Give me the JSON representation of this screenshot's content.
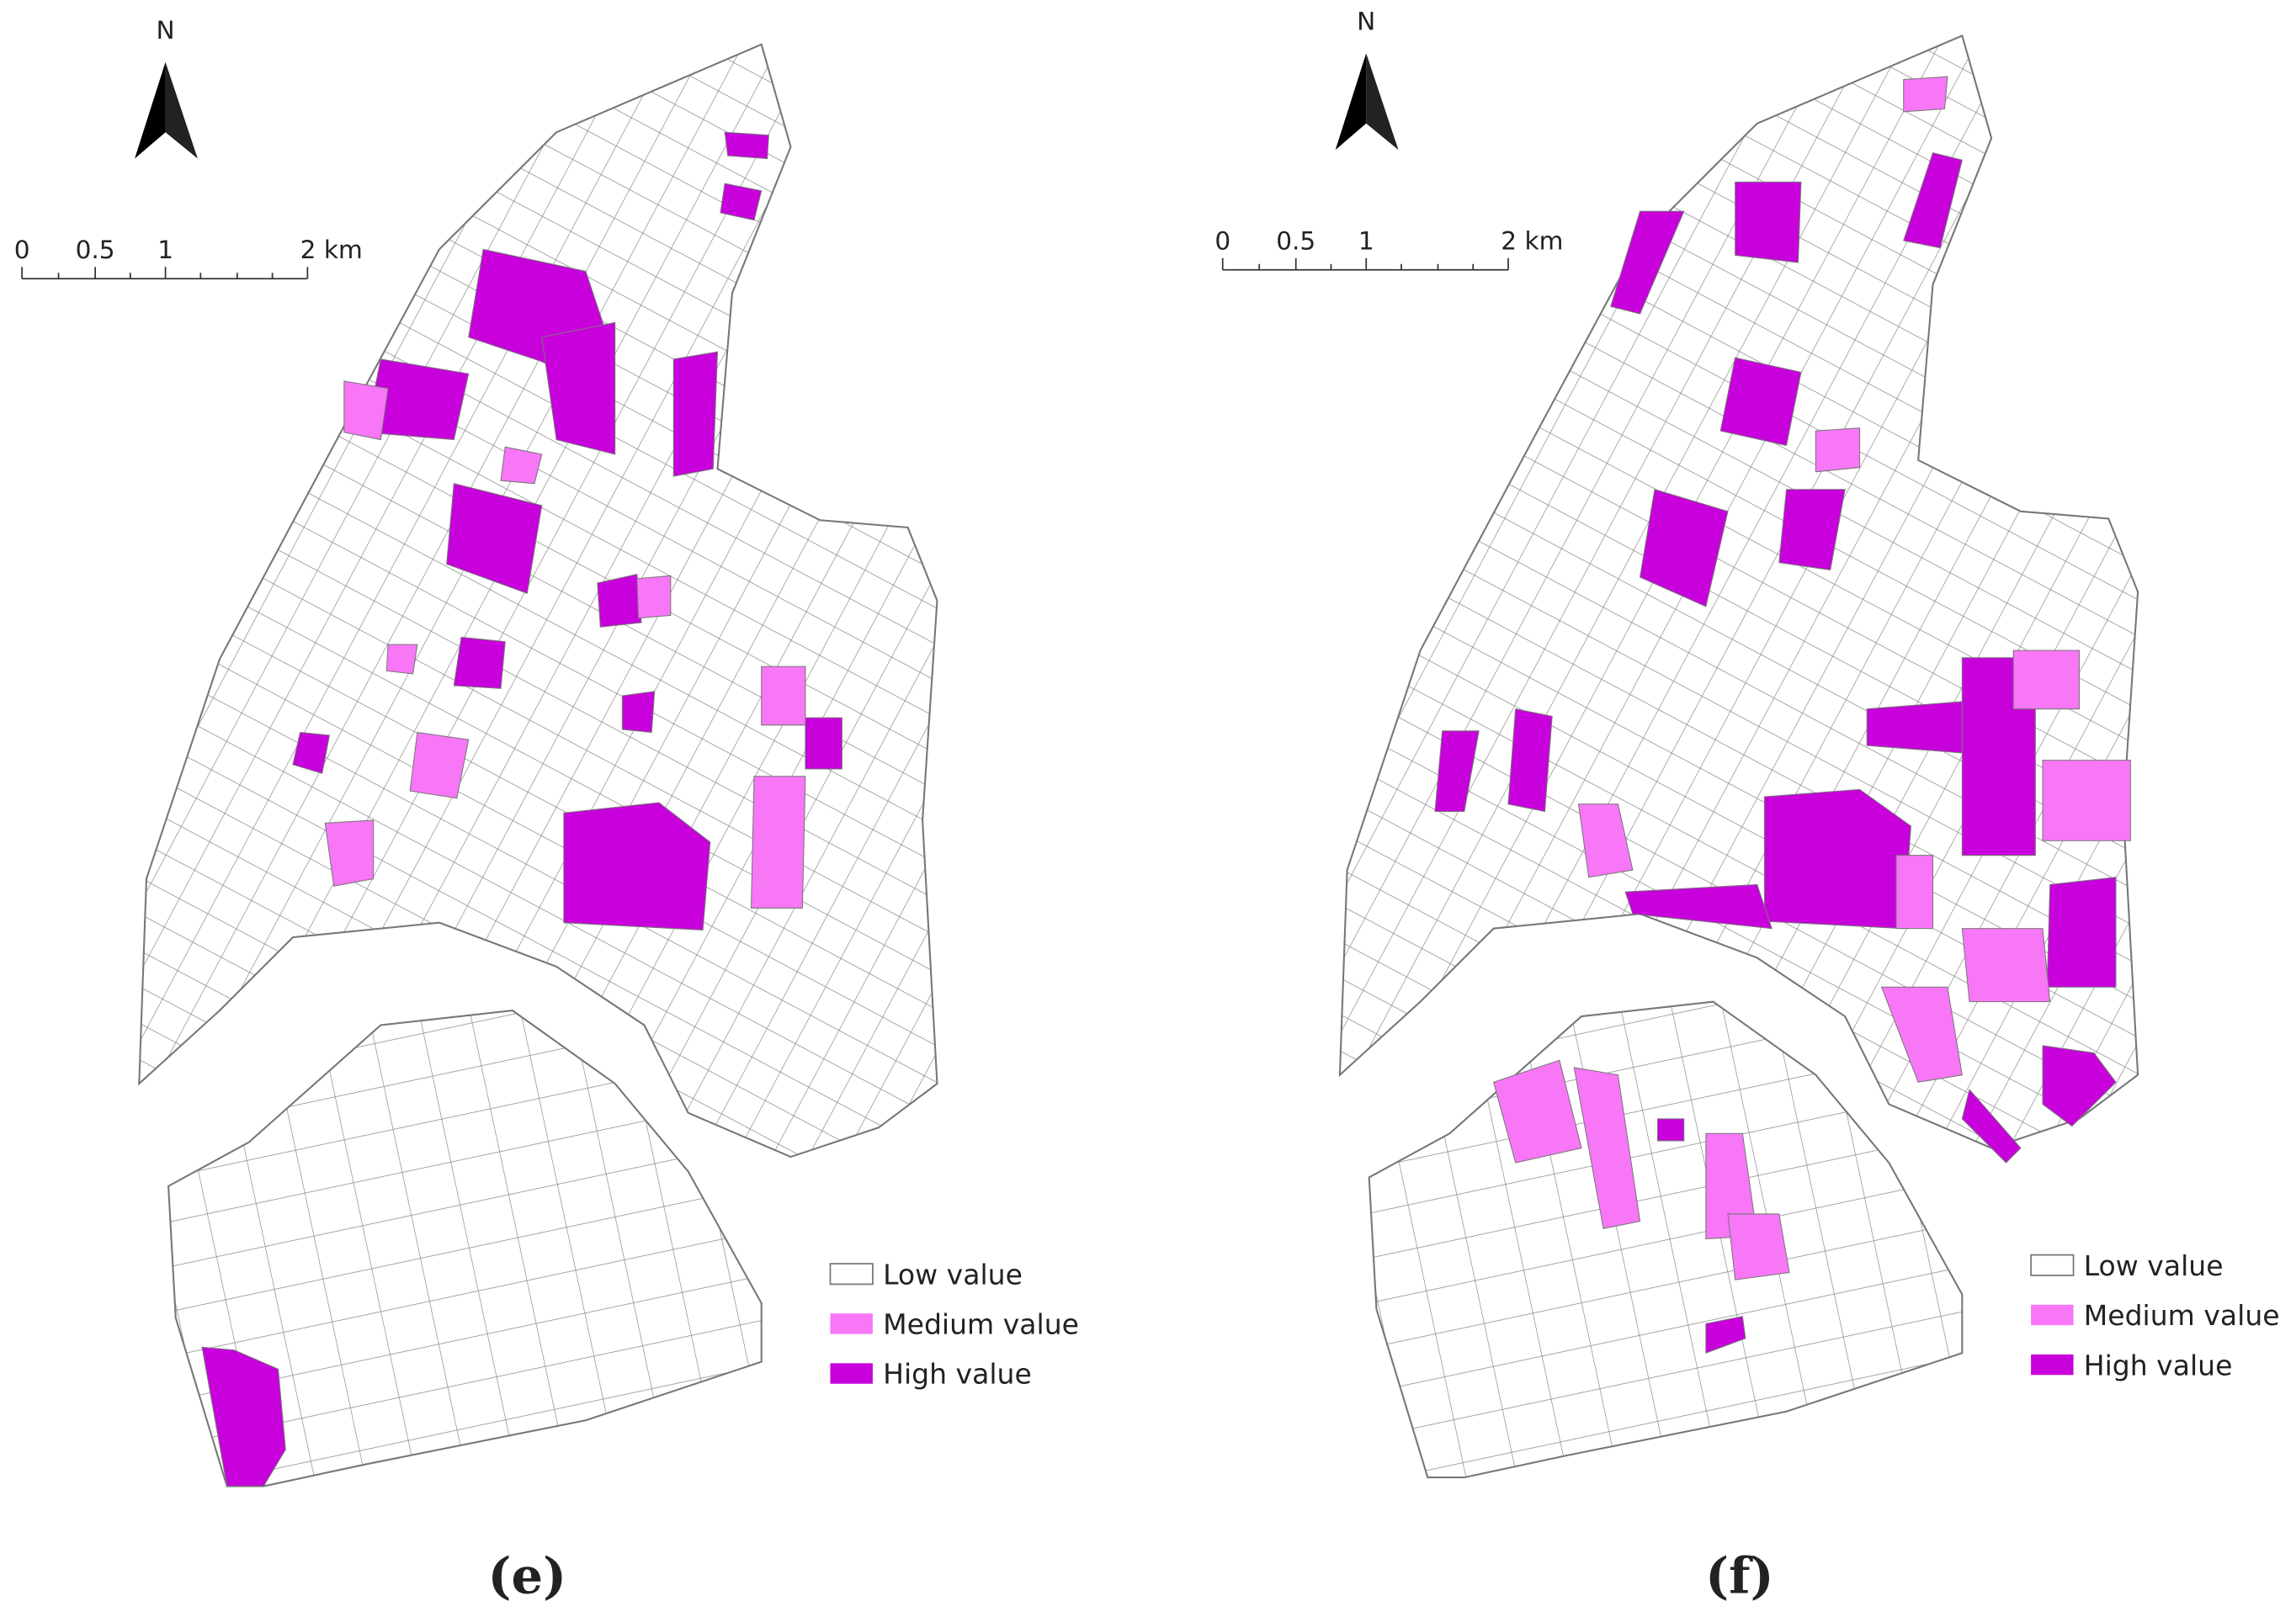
{
  "panels": [
    {
      "caption": "(e)",
      "north": "N",
      "scale": [
        "0",
        "0.5",
        "1",
        "2 km"
      ],
      "legend": [
        "Low value",
        "Medium value",
        "High value"
      ]
    },
    {
      "caption": "(f)",
      "north": "N",
      "scale": [
        "0",
        "0.5",
        "1",
        "2 km"
      ],
      "legend": [
        "Low value",
        "Medium value",
        "High value"
      ]
    }
  ]
}
